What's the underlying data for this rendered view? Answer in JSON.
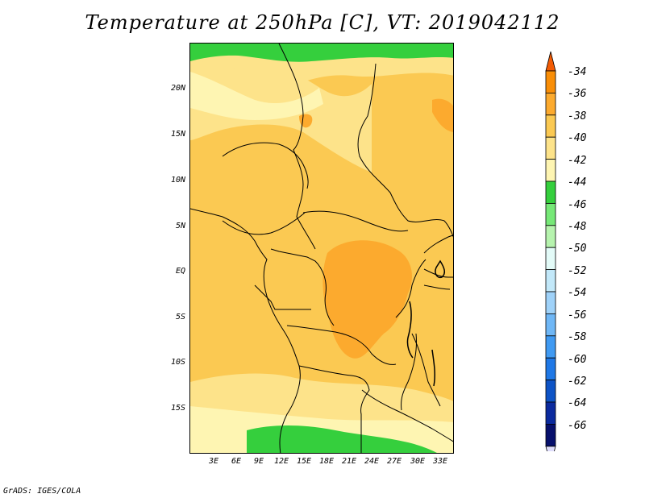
{
  "title": "Temperature at 250hPa [C], VT: 2019042112",
  "credit": "GrADS: IGES/COLA",
  "lat_labels": [
    "20N",
    "15N",
    "10N",
    "5N",
    "EQ",
    "5S",
    "10S",
    "15S"
  ],
  "lon_labels": [
    "3E",
    "6E",
    "9E",
    "12E",
    "15E",
    "18E",
    "21E",
    "24E",
    "27E",
    "30E",
    "33E"
  ],
  "colorbar": {
    "labels": [
      "-34",
      "-36",
      "-38",
      "-40",
      "-42",
      "-44",
      "-46",
      "-48",
      "-50",
      "-52",
      "-54",
      "-56",
      "-58",
      "-60",
      "-62",
      "-64",
      "-66"
    ],
    "colors": [
      "#f25b04",
      "#f98e07",
      "#fcaa2e",
      "#fbc952",
      "#fde38a",
      "#fef5b2",
      "#35cf3d",
      "#76e877",
      "#b6f3ae",
      "#e3fbf8",
      "#c2e8f9",
      "#9fd2f9",
      "#6fb7f6",
      "#409af2",
      "#1f78e6",
      "#0d53c6",
      "#0b2a9e",
      "#07106c",
      "#dedcfa"
    ]
  },
  "map_colors": {
    "base": "#fbc952",
    "light": "#fde38a",
    "pale": "#fef5b2",
    "warm": "#fcaa2e",
    "green": "#35cf3d"
  }
}
